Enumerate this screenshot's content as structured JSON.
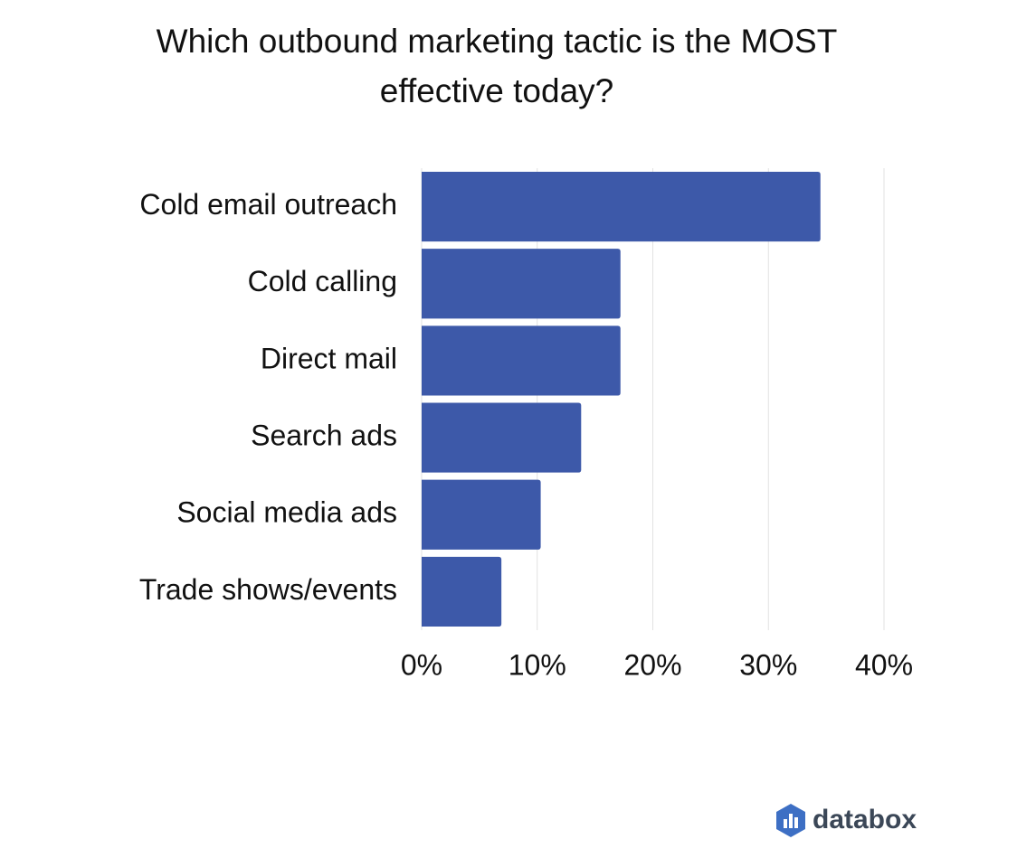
{
  "chart_data": {
    "type": "barh",
    "title": "Which outbound marketing tactic is the MOST effective today?",
    "categories": [
      "Cold email outreach",
      "Cold calling",
      "Direct mail",
      "Search ads",
      "Social media ads",
      "Trade shows/events"
    ],
    "values": [
      34.5,
      17.2,
      17.2,
      13.8,
      10.3,
      6.9
    ],
    "color": "#3d59a9",
    "xlim": [
      0,
      40
    ],
    "xticks": [
      {
        "value": 0,
        "label": "0%"
      },
      {
        "value": 10,
        "label": "10%"
      },
      {
        "value": 20,
        "label": "20%"
      },
      {
        "value": 30,
        "label": "30%"
      },
      {
        "value": 40,
        "label": "40%"
      }
    ],
    "grid": true
  },
  "footer": {
    "logo": "databox"
  }
}
